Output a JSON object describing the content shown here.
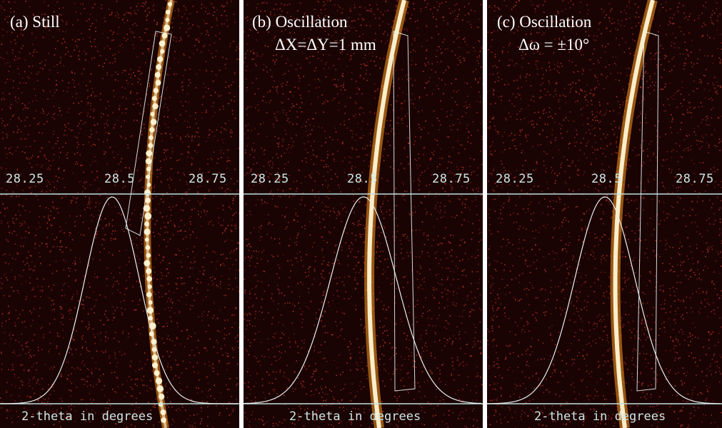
{
  "panels": [
    {
      "id": "a",
      "title": "(a) Still",
      "subtitle": "",
      "ticks": [
        "28.25",
        "28.5",
        "28.75"
      ],
      "xlabel": "2-theta in degrees",
      "ring_style": "spotty"
    },
    {
      "id": "b",
      "title": "(b) Oscillation",
      "subtitle": "ΔX=ΔY=1 mm",
      "ticks": [
        "28.25",
        "28.5",
        "28.75"
      ],
      "xlabel": "2-theta in degrees",
      "ring_style": "smooth"
    },
    {
      "id": "c",
      "title": "(c) Oscillation",
      "subtitle": "Δω = ±10°",
      "ticks": [
        "28.25",
        "28.5",
        "28.75"
      ],
      "xlabel": "2-theta in degrees",
      "ring_style": "smooth"
    }
  ],
  "colors": {
    "background": "#1a0303",
    "noise": "#c0392b",
    "ring_core": "#fff7d6",
    "ring_glow": "#ff9a1f",
    "axis": "#bfe0e0",
    "profile": "#e8f0f0"
  }
}
